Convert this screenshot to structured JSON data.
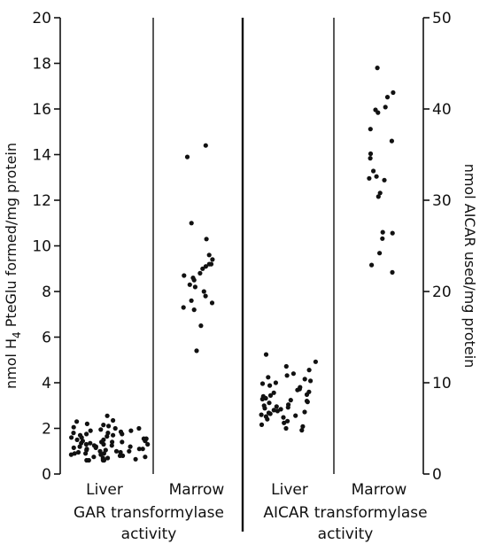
{
  "chart_data": {
    "type": "scatter",
    "left_axis": {
      "label_parts": [
        "nmol H",
        "4",
        " PteGlu formed/mg protein"
      ],
      "range": [
        0,
        20
      ],
      "ticks": [
        "0",
        "2",
        "4",
        "6",
        "8",
        "10",
        "12",
        "14",
        "16",
        "18",
        "20"
      ]
    },
    "right_axis": {
      "label": "nmol AICAR used/mg protein",
      "range": [
        0,
        50
      ],
      "ticks": [
        "0",
        "10",
        "20",
        "30",
        "40",
        "50"
      ]
    },
    "groups": [
      {
        "title_line1": "GAR transformylase",
        "title_line2": "activity",
        "axis": "left",
        "columns": [
          {
            "name": "Liver",
            "values": [
              2.55,
              2.35,
              2.3,
              2.2,
              2.15,
              2.1,
              2.05,
              2.0,
              2.0,
              1.95,
              1.9,
              1.9,
              1.85,
              1.8,
              1.8,
              1.75,
              1.75,
              1.7,
              1.7,
              1.65,
              1.6,
              1.6,
              1.55,
              1.55,
              1.5,
              1.5,
              1.45,
              1.45,
              1.4,
              1.4,
              1.4,
              1.35,
              1.35,
              1.3,
              1.3,
              1.3,
              1.25,
              1.25,
              1.2,
              1.2,
              1.2,
              1.15,
              1.15,
              1.1,
              1.1,
              1.1,
              1.05,
              1.05,
              1.0,
              1.0,
              1.0,
              0.95,
              0.95,
              0.9,
              0.9,
              0.9,
              0.85,
              0.85,
              0.8,
              0.8,
              0.75,
              0.75,
              0.7,
              0.7,
              0.65,
              0.65,
              0.6,
              0.6,
              0.6,
              0.6
            ]
          },
          {
            "name": "Marrow",
            "values": [
              14.4,
              13.9,
              11.0,
              10.3,
              9.6,
              9.4,
              9.2,
              9.2,
              9.1,
              9.0,
              8.8,
              8.7,
              8.6,
              8.5,
              8.3,
              8.2,
              8.0,
              7.8,
              7.6,
              7.5,
              7.3,
              7.2,
              6.5,
              5.4
            ]
          }
        ]
      },
      {
        "title_line1": "AICAR transformylase",
        "title_line2": "activity",
        "axis": "right",
        "columns": [
          {
            "name": "Liver",
            "values": [
              13.1,
              12.3,
              11.8,
              11.4,
              11.0,
              10.8,
              10.6,
              10.4,
              10.2,
              10.0,
              9.9,
              9.7,
              9.5,
              9.3,
              9.2,
              9.0,
              8.9,
              8.7,
              8.6,
              8.5,
              8.3,
              8.2,
              8.1,
              8.0,
              7.9,
              7.8,
              7.6,
              7.5,
              7.4,
              7.3,
              7.2,
              7.1,
              7.0,
              6.9,
              6.8,
              6.7,
              6.6,
              6.5,
              6.4,
              6.3,
              6.2,
              6.0,
              5.8,
              5.6,
              5.4,
              5.2,
              5.0,
              4.8
            ]
          },
          {
            "name": "Marrow",
            "values": [
              44.5,
              41.8,
              41.3,
              40.2,
              39.9,
              39.6,
              37.8,
              36.5,
              35.1,
              34.6,
              33.2,
              32.6,
              32.4,
              32.2,
              30.8,
              30.4,
              26.5,
              26.4,
              25.8,
              24.2,
              22.9,
              22.1
            ]
          }
        ]
      }
    ]
  }
}
